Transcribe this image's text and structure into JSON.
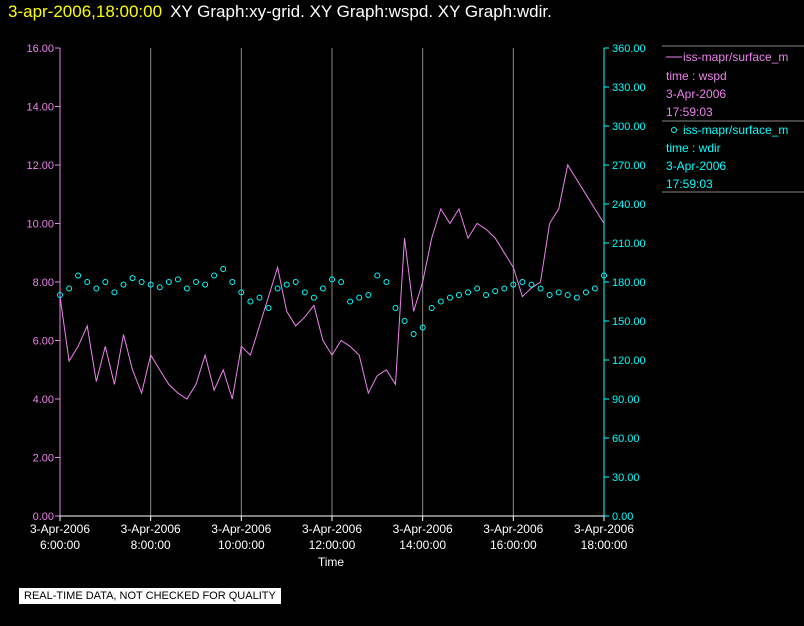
{
  "header": {
    "datetime": "3-apr-2006,18:00:00",
    "titles": "XY Graph:xy-grid.  XY Graph:wspd.  XY Graph:wdir."
  },
  "notice": "REAL-TIME DATA, NOT CHECKED FOR QUALITY",
  "colors": {
    "background": "#000000",
    "wspd": "#ee82ee",
    "wdir": "#00ffff",
    "grid": "#888888",
    "header_date": "#ffff00",
    "header_titles": "#ffffff"
  },
  "legend": {
    "wspd": {
      "symbol_line": true,
      "name": "iss-mapr/surface_m",
      "line2": "time : wspd",
      "line3": "3-Apr-2006",
      "line4": "17:59:03"
    },
    "wdir": {
      "symbol_circle": true,
      "name": "iss-mapr/surface_m",
      "line2": "time : wdir",
      "line3": "3-Apr-2006",
      "line4": "17:59:03"
    }
  },
  "chart_data": {
    "type": "line",
    "xlabel": "Time",
    "x_range_hours": [
      6.0,
      18.0
    ],
    "x_ticks": [
      {
        "hour": 6,
        "date": "3-Apr-2006",
        "time": "6:00:00"
      },
      {
        "hour": 8,
        "date": "3-Apr-2006",
        "time": "8:00:00"
      },
      {
        "hour": 10,
        "date": "3-Apr-2006",
        "time": "10:00:00"
      },
      {
        "hour": 12,
        "date": "3-Apr-2006",
        "time": "12:00:00"
      },
      {
        "hour": 14,
        "date": "3-Apr-2006",
        "time": "14:00:00"
      },
      {
        "hour": 16,
        "date": "3-Apr-2006",
        "time": "16:00:00"
      },
      {
        "hour": 18,
        "date": "3-Apr-2006",
        "time": "18:00:00"
      }
    ],
    "y_left": {
      "range": [
        0,
        16
      ],
      "ticks": [
        "0.00",
        "2.00",
        "4.00",
        "6.00",
        "8.00",
        "10.00",
        "12.00",
        "14.00",
        "16.00"
      ],
      "color": "#ee82ee"
    },
    "y_right": {
      "range": [
        0,
        360
      ],
      "ticks": [
        "0.00",
        "30.00",
        "60.00",
        "90.00",
        "120.00",
        "150.00",
        "180.00",
        "210.00",
        "240.00",
        "270.00",
        "300.00",
        "330.00",
        "360.00"
      ],
      "color": "#00ffff"
    },
    "grid": "vertical",
    "series": [
      {
        "name": "iss-mapr/surface_m",
        "label": "time : wspd",
        "axis": "left",
        "style": "line",
        "x": [
          6.0,
          6.2,
          6.4,
          6.6,
          6.8,
          7.0,
          7.2,
          7.4,
          7.6,
          7.8,
          8.0,
          8.2,
          8.4,
          8.6,
          8.8,
          9.0,
          9.2,
          9.4,
          9.6,
          9.8,
          10.0,
          10.2,
          10.4,
          10.6,
          10.8,
          11.0,
          11.2,
          11.4,
          11.6,
          11.8,
          12.0,
          12.2,
          12.4,
          12.6,
          12.8,
          13.0,
          13.2,
          13.4,
          13.6,
          13.8,
          14.0,
          14.2,
          14.4,
          14.6,
          14.8,
          15.0,
          15.2,
          15.4,
          15.6,
          15.8,
          16.0,
          16.2,
          16.4,
          16.6,
          16.8,
          17.0,
          17.2,
          17.4,
          17.6,
          17.8,
          18.0
        ],
        "y": [
          7.5,
          5.3,
          5.8,
          6.5,
          4.6,
          5.8,
          4.5,
          6.2,
          5.0,
          4.2,
          5.5,
          5.0,
          4.5,
          4.2,
          4.0,
          4.5,
          5.5,
          4.3,
          5.0,
          4.0,
          5.8,
          5.5,
          6.5,
          7.5,
          8.5,
          7.0,
          6.5,
          6.8,
          7.2,
          6.0,
          5.5,
          6.0,
          5.8,
          5.5,
          4.2,
          4.8,
          5.0,
          4.5,
          9.5,
          7.0,
          8.0,
          9.5,
          10.5,
          10.0,
          10.5,
          9.5,
          10.0,
          9.8,
          9.5,
          9.0,
          8.5,
          7.5,
          7.8,
          8.0,
          10.0,
          10.5,
          12.0,
          11.5,
          11.0,
          10.5,
          10.0
        ]
      },
      {
        "name": "iss-mapr/surface_m",
        "label": "time : wdir",
        "axis": "right",
        "style": "circle",
        "x": [
          6.0,
          6.2,
          6.4,
          6.6,
          6.8,
          7.0,
          7.2,
          7.4,
          7.6,
          7.8,
          8.0,
          8.2,
          8.4,
          8.6,
          8.8,
          9.0,
          9.2,
          9.4,
          9.6,
          9.8,
          10.0,
          10.2,
          10.4,
          10.6,
          10.8,
          11.0,
          11.2,
          11.4,
          11.6,
          11.8,
          12.0,
          12.2,
          12.4,
          12.6,
          12.8,
          13.0,
          13.2,
          13.4,
          13.6,
          13.8,
          14.0,
          14.2,
          14.4,
          14.6,
          14.8,
          15.0,
          15.2,
          15.4,
          15.6,
          15.8,
          16.0,
          16.2,
          16.4,
          16.6,
          16.8,
          17.0,
          17.2,
          17.4,
          17.6,
          17.8,
          18.0
        ],
        "y": [
          170,
          175,
          185,
          180,
          175,
          180,
          172,
          178,
          183,
          180,
          178,
          176,
          180,
          182,
          175,
          180,
          178,
          185,
          190,
          180,
          172,
          165,
          168,
          160,
          175,
          178,
          180,
          172,
          168,
          175,
          182,
          180,
          165,
          168,
          170,
          185,
          180,
          160,
          150,
          140,
          145,
          160,
          165,
          168,
          170,
          172,
          175,
          170,
          173,
          175,
          178,
          180,
          178,
          175,
          170,
          172,
          170,
          168,
          172,
          175,
          185
        ]
      }
    ]
  }
}
